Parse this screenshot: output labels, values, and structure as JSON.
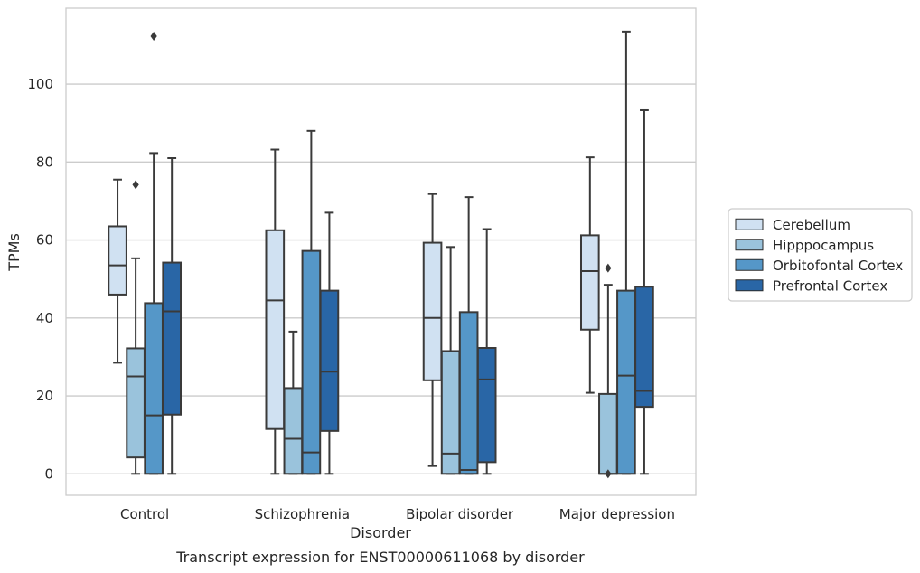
{
  "chart_data": {
    "type": "box",
    "xlabel": "Disorder",
    "ylabel": "TPMs",
    "caption": "Transcript expression for ENST00000611068 by disorder",
    "ylim": [
      -5.5,
      119.5
    ],
    "yticks": [
      0,
      20,
      40,
      60,
      80,
      100
    ],
    "grid": "horizontal",
    "legend_placement": "right",
    "categories": [
      "Control",
      "Schizophrenia",
      "Bipolar disorder",
      "Major depression"
    ],
    "series": [
      {
        "name": "Cerebellum",
        "color": "#d0e1f2",
        "boxes": [
          {
            "whislo": 28.5,
            "q1": 46,
            "med": 53.5,
            "q3": 63.5,
            "whishi": 75.5,
            "fliers": []
          },
          {
            "whislo": 0,
            "q1": 11.5,
            "med": 44.5,
            "q3": 62.5,
            "whishi": 83.2,
            "fliers": []
          },
          {
            "whislo": 2,
            "q1": 24,
            "med": 40,
            "q3": 59.3,
            "whishi": 71.8,
            "fliers": []
          },
          {
            "whislo": 20.8,
            "q1": 37,
            "med": 52,
            "q3": 61.2,
            "whishi": 81.2,
            "fliers": []
          }
        ]
      },
      {
        "name": "Hipppocampus",
        "color": "#9ac3dc",
        "boxes": [
          {
            "whislo": 0,
            "q1": 4.2,
            "med": 25,
            "q3": 32.2,
            "whishi": 55.3,
            "fliers": [
              74.2
            ]
          },
          {
            "whislo": 0,
            "q1": 0,
            "med": 9,
            "q3": 22,
            "whishi": 36.5,
            "fliers": []
          },
          {
            "whislo": 0,
            "q1": 0,
            "med": 5.2,
            "q3": 31.5,
            "whishi": 58.2,
            "fliers": []
          },
          {
            "whislo": 0,
            "q1": 0,
            "med": 0,
            "q3": 20.5,
            "whishi": 48.5,
            "fliers": [
              0,
              52.8
            ]
          }
        ]
      },
      {
        "name": "Orbitofontal Cortex",
        "color": "#5597c8",
        "boxes": [
          {
            "whislo": 0,
            "q1": 0,
            "med": 15,
            "q3": 43.8,
            "whishi": 82.3,
            "fliers": [
              112.3
            ]
          },
          {
            "whislo": 0,
            "q1": 0,
            "med": 5.5,
            "q3": 57.2,
            "whishi": 88,
            "fliers": []
          },
          {
            "whislo": 0,
            "q1": 0,
            "med": 1,
            "q3": 41.5,
            "whishi": 71,
            "fliers": []
          },
          {
            "whislo": 0,
            "q1": 0,
            "med": 25.2,
            "q3": 47,
            "whishi": 113.5,
            "fliers": []
          }
        ]
      },
      {
        "name": "Prefrontal Cortex",
        "color": "#2966a6",
        "boxes": [
          {
            "whislo": 0,
            "q1": 15.2,
            "med": 41.7,
            "q3": 54.2,
            "whishi": 81,
            "fliers": []
          },
          {
            "whislo": 0,
            "q1": 11,
            "med": 26.2,
            "q3": 47,
            "whishi": 67,
            "fliers": []
          },
          {
            "whislo": 0,
            "q1": 3,
            "med": 24.2,
            "q3": 32.3,
            "whishi": 62.8,
            "fliers": []
          },
          {
            "whislo": 0,
            "q1": 17.2,
            "med": 21.3,
            "q3": 48,
            "whishi": 93.3,
            "fliers": []
          }
        ]
      }
    ]
  }
}
